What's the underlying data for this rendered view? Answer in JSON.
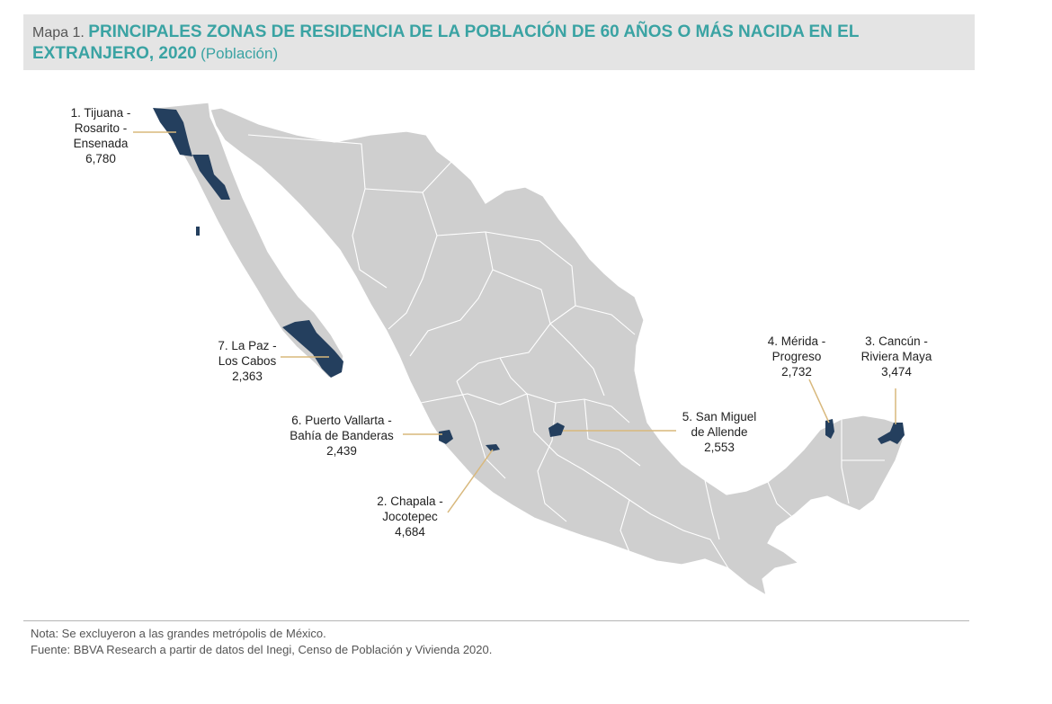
{
  "header": {
    "prefix": "Mapa 1.",
    "title": "PRINCIPALES ZONAS DE RESIDENCIA DE LA POBLACIÓN DE 60 AÑOS O MÁS NACIDA EN EL EXTRANJERO, 2020",
    "unit": "(Población)"
  },
  "colors": {
    "land": "#cfcfcf",
    "border": "#ffffff",
    "highlight": "#243f5e",
    "leader": "#d8b87c",
    "title": "#3aa3a3"
  },
  "zones": [
    {
      "rank": "1.",
      "name_line1": "Tijuana -",
      "name_line2": "Rosarito -",
      "name_line3": "Ensenada",
      "value": "6,780"
    },
    {
      "rank": "2.",
      "name_line1": "Chapala -",
      "name_line2": "Jocotepec",
      "value": "4,684"
    },
    {
      "rank": "3.",
      "name_line1": "Cancún -",
      "name_line2": "Riviera Maya",
      "value": "3,474"
    },
    {
      "rank": "4.",
      "name_line1": "Mérida -",
      "name_line2": "Progreso",
      "value": "2,732"
    },
    {
      "rank": "5.",
      "name_line1": "San Miguel",
      "name_line2": "de Allende",
      "value": "2,553"
    },
    {
      "rank": "6.",
      "name_line1": "Puerto Vallarta -",
      "name_line2": "Bahía de Banderas",
      "value": "2,439"
    },
    {
      "rank": "7.",
      "name_line1": "La Paz -",
      "name_line2": "Los Cabos",
      "value": "2,363"
    }
  ],
  "footer": {
    "note": "Nota: Se excluyeron a las grandes metrópolis de México.",
    "source": "Fuente: BBVA Research a partir de datos del Inegi, Censo de Población y Vivienda 2020."
  }
}
